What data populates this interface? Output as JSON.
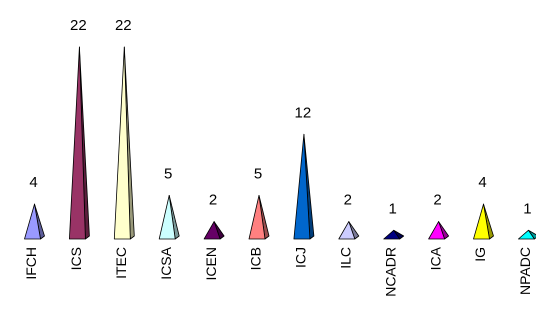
{
  "chart_data": {
    "type": "bar",
    "bar_shape": "pyramid",
    "categories": [
      "IFCH",
      "ICS",
      "ITEC",
      "ICSA",
      "ICEN",
      "ICB",
      "ICJ",
      "ILC",
      "NCADR",
      "ICA",
      "IG",
      "NPADC"
    ],
    "values": [
      4,
      22,
      22,
      5,
      2,
      5,
      12,
      2,
      1,
      2,
      4,
      1
    ],
    "colors": [
      "#9999ff",
      "#993366",
      "#ffffcc",
      "#ccffff",
      "#660066",
      "#ff8080",
      "#0066cc",
      "#ccccff",
      "#000080",
      "#ff00ff",
      "#ffff00",
      "#00ffff"
    ],
    "title": "",
    "xlabel": "",
    "ylabel": "",
    "ylim": [
      0,
      22
    ],
    "grid": false,
    "legend": "none",
    "data_labels": true
  }
}
